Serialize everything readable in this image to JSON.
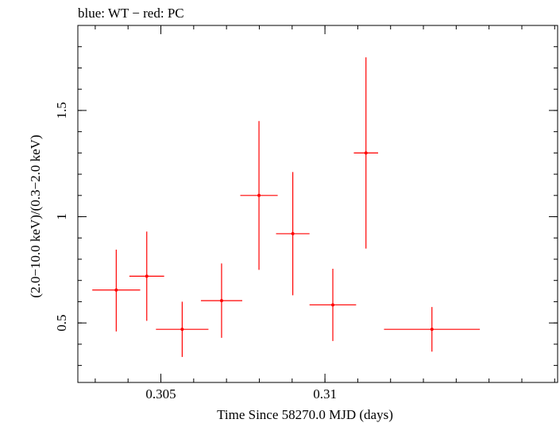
{
  "chart_data": {
    "type": "scatter",
    "title": "blue: WT − red: PC",
    "xlabel": "Time Since 58270.0 MJD (days)",
    "ylabel": "(2.0−10.0 keV)/(0.3−2.0 keV)",
    "xlim": [
      0.30247,
      0.31709
    ],
    "ylim": [
      0.22,
      1.9
    ],
    "x_ticks": [
      {
        "value": 0.305,
        "label": "0.305"
      },
      {
        "value": 0.31,
        "label": "0.31"
      }
    ],
    "y_ticks": [
      {
        "value": 0.5,
        "label": "0.5"
      },
      {
        "value": 1.0,
        "label": "1"
      },
      {
        "value": 1.5,
        "label": "1.5"
      }
    ],
    "x_minor_step": 0.001,
    "y_minor_step": 0.1,
    "grid": false,
    "series": [
      {
        "color": "#ff0000",
        "points": [
          {
            "x": 0.30364,
            "xerr": 0.00073,
            "y": 0.655,
            "yerr_lo": 0.195,
            "yerr_hi": 0.19
          },
          {
            "x": 0.30457,
            "xerr": 0.00053,
            "y": 0.72,
            "yerr_lo": 0.21,
            "yerr_hi": 0.21
          },
          {
            "x": 0.30565,
            "xerr": 0.0008,
            "y": 0.47,
            "yerr_lo": 0.13,
            "yerr_hi": 0.13
          },
          {
            "x": 0.30685,
            "xerr": 0.00063,
            "y": 0.605,
            "yerr_lo": 0.175,
            "yerr_hi": 0.175
          },
          {
            "x": 0.30799,
            "xerr": 0.00057,
            "y": 1.1,
            "yerr_lo": 0.35,
            "yerr_hi": 0.35
          },
          {
            "x": 0.30902,
            "xerr": 0.00051,
            "y": 0.92,
            "yerr_lo": 0.29,
            "yerr_hi": 0.29
          },
          {
            "x": 0.31024,
            "xerr": 0.00071,
            "y": 0.585,
            "yerr_lo": 0.17,
            "yerr_hi": 0.17
          },
          {
            "x": 0.31125,
            "xerr": 0.00037,
            "y": 1.3,
            "yerr_lo": 0.45,
            "yerr_hi": 0.45
          },
          {
            "x": 0.31326,
            "xerr": 0.00146,
            "y": 0.47,
            "yerr_lo": 0.105,
            "yerr_hi": 0.105
          }
        ]
      }
    ]
  }
}
